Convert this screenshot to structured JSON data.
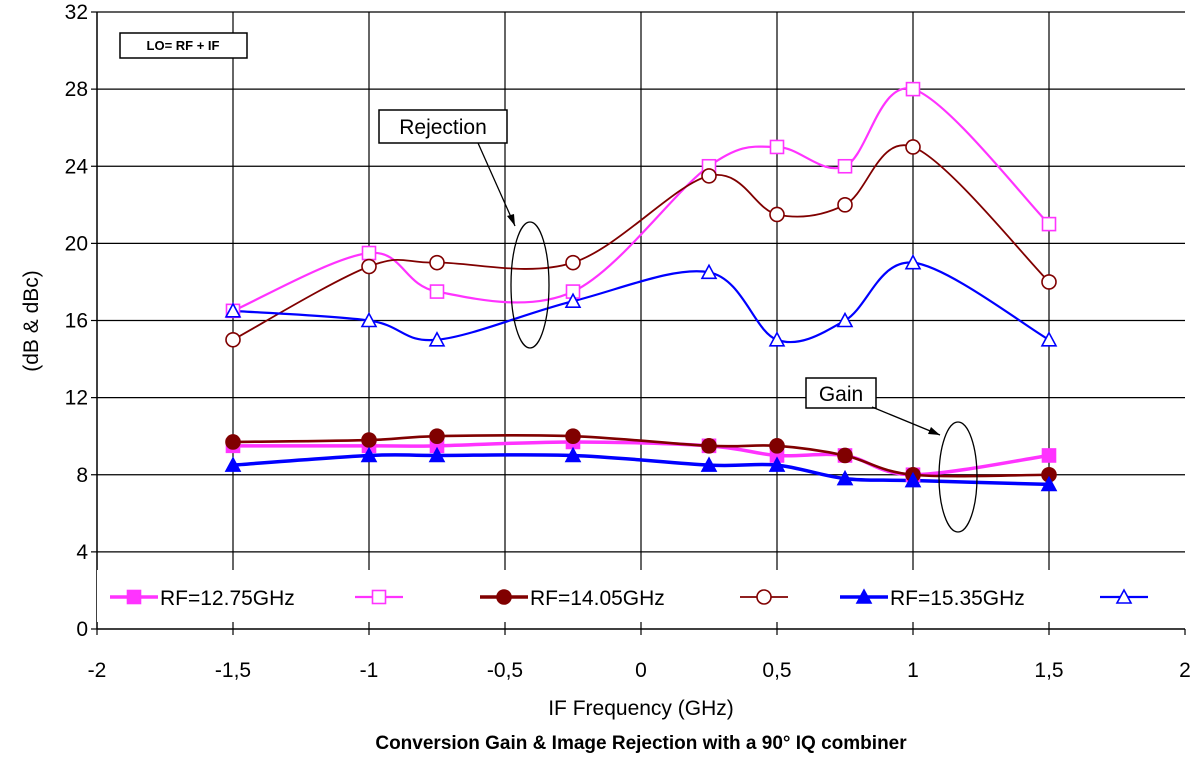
{
  "chart_data": {
    "type": "line",
    "title": "Conversion Gain & Image Rejection with a 90° IQ combiner",
    "xlabel": "IF Frequency (GHz)",
    "ylabel": "(dB & dBc)",
    "xlim": [
      -2,
      2
    ],
    "ylim": [
      0,
      32
    ],
    "x_ticks": [
      -2,
      -1.5,
      -1,
      -0.5,
      0,
      0.5,
      1,
      1.5,
      2
    ],
    "x_tick_labels": [
      "-2",
      "-1,5",
      "-1",
      "-0,5",
      "0",
      "0,5",
      "1",
      "1,5",
      "2"
    ],
    "y_ticks": [
      0,
      4,
      8,
      12,
      16,
      20,
      24,
      28,
      32
    ],
    "grid": true,
    "legend_position": "bottom",
    "note": "LO= RF + IF",
    "annotations": [
      "Rejection",
      "Gain"
    ],
    "series": [
      {
        "name": "RF=12.75GHz",
        "group": "gain",
        "color": "#ff33ff",
        "marker": "square",
        "filled": true,
        "x": [
          -1.5,
          -1,
          -0.75,
          -0.25,
          0.25,
          0.5,
          0.75,
          1,
          1.5
        ],
        "y": [
          9.5,
          9.5,
          9.5,
          9.7,
          9.5,
          9.0,
          9.0,
          8.0,
          9.0
        ]
      },
      {
        "name": "",
        "group": "rejection",
        "color": "#ff33ff",
        "marker": "square",
        "filled": false,
        "x": [
          -1.5,
          -1,
          -0.75,
          -0.25,
          0.25,
          0.5,
          0.75,
          1,
          1.5
        ],
        "y": [
          16.5,
          19.5,
          17.5,
          17.5,
          24.0,
          25.0,
          24.0,
          28.0,
          21.0
        ]
      },
      {
        "name": "RF=14.05GHz",
        "group": "gain",
        "color": "#800000",
        "marker": "circle",
        "filled": true,
        "x": [
          -1.5,
          -1,
          -0.75,
          -0.25,
          0.25,
          0.5,
          0.75,
          1,
          1.5
        ],
        "y": [
          9.7,
          9.8,
          10.0,
          10.0,
          9.5,
          9.5,
          9.0,
          8.0,
          8.0
        ]
      },
      {
        "name": "",
        "group": "rejection",
        "color": "#800000",
        "marker": "circle",
        "filled": false,
        "x": [
          -1.5,
          -1,
          -0.75,
          -0.25,
          0.25,
          0.5,
          0.75,
          1,
          1.5
        ],
        "y": [
          15.0,
          18.8,
          19.0,
          19.0,
          23.5,
          21.5,
          22.0,
          25.0,
          18.0
        ]
      },
      {
        "name": "RF=15.35GHz",
        "group": "gain",
        "color": "#0000ff",
        "marker": "triangle",
        "filled": true,
        "x": [
          -1.5,
          -1,
          -0.75,
          -0.25,
          0.25,
          0.5,
          0.75,
          1,
          1.5
        ],
        "y": [
          8.5,
          9.0,
          9.0,
          9.0,
          8.5,
          8.5,
          7.8,
          7.7,
          7.5
        ]
      },
      {
        "name": "",
        "group": "rejection",
        "color": "#0000ff",
        "marker": "triangle",
        "filled": false,
        "x": [
          -1.5,
          -1,
          -0.75,
          -0.25,
          0.25,
          0.5,
          0.75,
          1,
          1.5
        ],
        "y": [
          16.5,
          16.0,
          15.0,
          17.0,
          18.5,
          15.0,
          16.0,
          19.0,
          15.0
        ]
      }
    ]
  }
}
